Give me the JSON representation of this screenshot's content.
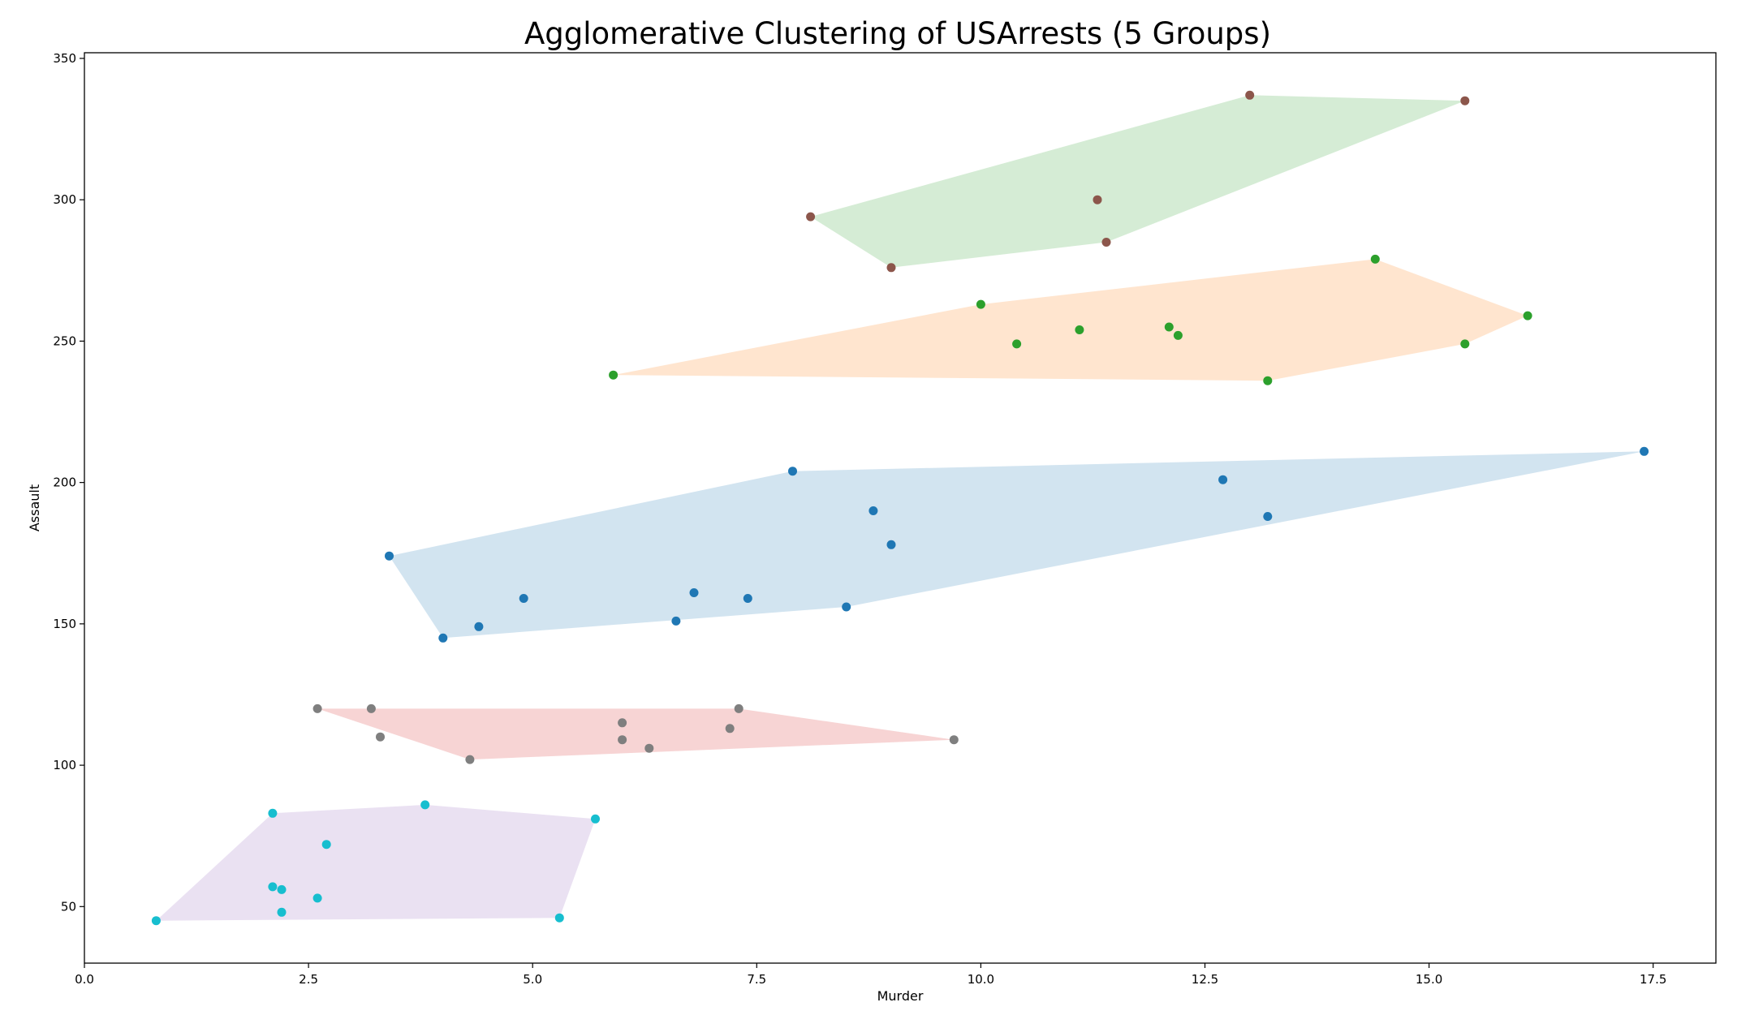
{
  "chart_data": {
    "type": "scatter",
    "title": "Agglomerative Clustering of USArrests (5 Groups)",
    "xlabel": "Murder",
    "ylabel": "Assault",
    "xlim": [
      0,
      18.2
    ],
    "ylim": [
      30,
      352
    ],
    "x_ticks": [
      0.0,
      2.5,
      5.0,
      7.5,
      10.0,
      12.5,
      15.0,
      17.5
    ],
    "x_tick_labels": [
      "0.0",
      "2.5",
      "5.0",
      "7.5",
      "10.0",
      "12.5",
      "15.0",
      "17.5"
    ],
    "y_ticks": [
      50,
      100,
      150,
      200,
      250,
      300,
      350
    ],
    "y_tick_labels": [
      "50",
      "100",
      "150",
      "200",
      "250",
      "300",
      "350"
    ],
    "grid": false,
    "legend": "none",
    "series": [
      {
        "point_color": "#8c564b",
        "hull_color": "#2ca02c",
        "points": [
          [
            13.0,
            337
          ],
          [
            15.4,
            335
          ],
          [
            8.1,
            294
          ],
          [
            11.3,
            300
          ],
          [
            11.4,
            285
          ],
          [
            9.0,
            276
          ]
        ],
        "hull": [
          [
            8.1,
            294
          ],
          [
            13.0,
            337
          ],
          [
            15.4,
            335
          ],
          [
            11.4,
            285
          ],
          [
            9.0,
            276
          ]
        ]
      },
      {
        "point_color": "#2ca02c",
        "hull_color": "#ff7f0e",
        "points": [
          [
            14.4,
            279
          ],
          [
            10.0,
            263
          ],
          [
            16.1,
            259
          ],
          [
            12.1,
            255
          ],
          [
            11.1,
            254
          ],
          [
            12.2,
            252
          ],
          [
            10.4,
            249
          ],
          [
            15.4,
            249
          ],
          [
            5.9,
            238
          ],
          [
            13.2,
            236
          ]
        ],
        "hull": [
          [
            5.9,
            238
          ],
          [
            10.0,
            263
          ],
          [
            14.4,
            279
          ],
          [
            16.1,
            259
          ],
          [
            15.4,
            249
          ],
          [
            13.2,
            236
          ]
        ]
      },
      {
        "point_color": "#1f77b4",
        "hull_color": "#1f77b4",
        "points": [
          [
            17.4,
            211
          ],
          [
            7.9,
            204
          ],
          [
            12.7,
            201
          ],
          [
            8.8,
            190
          ],
          [
            13.2,
            188
          ],
          [
            9.0,
            178
          ],
          [
            3.4,
            174
          ],
          [
            6.8,
            161
          ],
          [
            4.9,
            159
          ],
          [
            7.4,
            159
          ],
          [
            8.5,
            156
          ],
          [
            6.6,
            151
          ],
          [
            4.4,
            149
          ],
          [
            4.0,
            145
          ]
        ],
        "hull": [
          [
            3.4,
            174
          ],
          [
            7.9,
            204
          ],
          [
            17.4,
            211
          ],
          [
            8.5,
            156
          ],
          [
            4.0,
            145
          ]
        ]
      },
      {
        "point_color": "#7f7f7f",
        "hull_color": "#d62728",
        "points": [
          [
            2.6,
            120
          ],
          [
            3.2,
            120
          ],
          [
            7.3,
            120
          ],
          [
            6.0,
            115
          ],
          [
            7.2,
            113
          ],
          [
            3.3,
            110
          ],
          [
            6.0,
            109
          ],
          [
            9.7,
            109
          ],
          [
            6.3,
            106
          ],
          [
            4.3,
            102
          ]
        ],
        "hull": [
          [
            2.6,
            120
          ],
          [
            7.3,
            120
          ],
          [
            9.7,
            109
          ],
          [
            4.3,
            102
          ]
        ]
      },
      {
        "point_color": "#17becf",
        "hull_color": "#9467bd",
        "points": [
          [
            3.8,
            86
          ],
          [
            2.1,
            83
          ],
          [
            5.7,
            81
          ],
          [
            2.7,
            72
          ],
          [
            2.1,
            57
          ],
          [
            2.2,
            56
          ],
          [
            2.6,
            53
          ],
          [
            2.2,
            48
          ],
          [
            5.3,
            46
          ],
          [
            0.8,
            45
          ]
        ],
        "hull": [
          [
            0.8,
            45
          ],
          [
            2.1,
            83
          ],
          [
            3.8,
            86
          ],
          [
            5.7,
            81
          ],
          [
            5.3,
            46
          ]
        ]
      }
    ]
  }
}
